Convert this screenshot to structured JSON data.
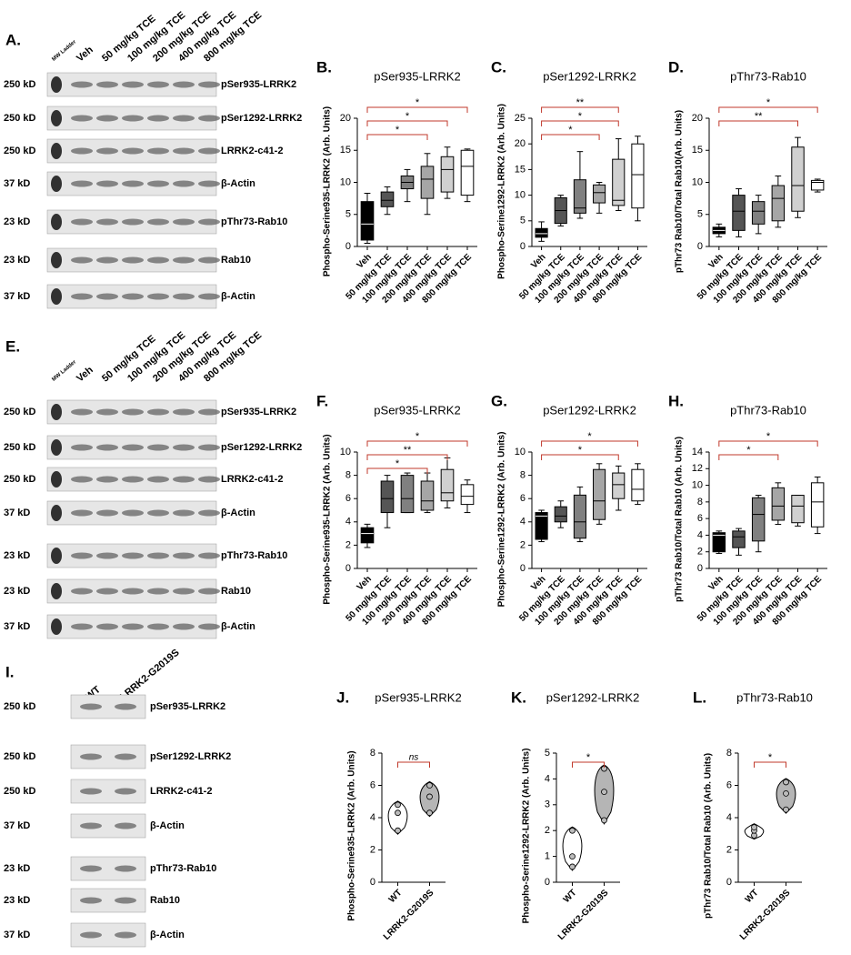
{
  "blots": [
    {
      "panel": "A.",
      "lanes": [
        "MW Ladder",
        "Veh",
        "50 mg/kg TCE",
        "100 mg/kg TCE",
        "200 mg/kg TCE",
        "400 mg/kg TCE",
        "800 mg/kg TCE"
      ],
      "rows": [
        {
          "size": "250 kD",
          "label": "pSer935-LRRK2"
        },
        {
          "size": "250 kD",
          "label": "pSer1292-LRRK2"
        },
        {
          "size": "250 kD",
          "label": "LRRK2-c41-2"
        },
        {
          "size": "37 kD",
          "label": "β-Actin"
        },
        {
          "size": "23 kD",
          "label": "pThr73-Rab10"
        },
        {
          "size": "23 kD",
          "label": "Rab10"
        },
        {
          "size": "37 kD",
          "label": "β-Actin"
        }
      ]
    },
    {
      "panel": "E.",
      "lanes": [
        "MW Ladder",
        "Veh",
        "50 mg/kg TCE",
        "100 mg/kg TCE",
        "200 mg/kg TCE",
        "400 mg/kg TCE",
        "800 mg/kg TCE"
      ],
      "rows": [
        {
          "size": "250 kD",
          "label": "pSer935-LRRK2"
        },
        {
          "size": "250 kD",
          "label": "pSer1292-LRRK2"
        },
        {
          "size": "250 kD",
          "label": "LRRK2-c41-2"
        },
        {
          "size": "37 kD",
          "label": "β-Actin"
        },
        {
          "size": "23 kD",
          "label": "pThr73-Rab10"
        },
        {
          "size": "23 kD",
          "label": "Rab10"
        },
        {
          "size": "37 kD",
          "label": "β-Actin"
        }
      ]
    },
    {
      "panel": "I.",
      "lanes": [
        "WT",
        "LRRK2-G2019S"
      ],
      "rows": [
        {
          "size": "250 kD",
          "label": "pSer935-LRRK2"
        },
        {
          "size": "250 kD",
          "label": "pSer1292-LRRK2"
        },
        {
          "size": "250 kD",
          "label": "LRRK2-c41-2"
        },
        {
          "size": "37 kD",
          "label": "β-Actin"
        },
        {
          "size": "23 kD",
          "label": "pThr73-Rab10"
        },
        {
          "size": "23 kD",
          "label": "Rab10"
        },
        {
          "size": "37 kD",
          "label": "β-Actin"
        }
      ]
    }
  ],
  "chart_data": [
    {
      "type": "box",
      "panel": "B.",
      "title": "pSer935-LRRK2",
      "y_label": "Phospho-Serine935-LRRK2 (Arb. Units)",
      "categories": [
        "Veh",
        "50 mg/kg TCE",
        "100 mg/kg TCE",
        "200 mg/kg TCE",
        "400 mg/kg TCE",
        "800 mg/kg TCE"
      ],
      "colors": [
        "#000000",
        "#555555",
        "#808080",
        "#a6a6a6",
        "#d0d0d0",
        "#ffffff"
      ],
      "boxes": [
        {
          "min": 0.5,
          "q1": 1,
          "median": 3.5,
          "q3": 7,
          "max": 8.3
        },
        {
          "min": 5,
          "q1": 6.2,
          "median": 7.2,
          "q3": 8.5,
          "max": 9.3
        },
        {
          "min": 7,
          "q1": 9,
          "median": 10,
          "q3": 11,
          "max": 12
        },
        {
          "min": 5,
          "q1": 7.5,
          "median": 10.5,
          "q3": 12.5,
          "max": 14.5
        },
        {
          "min": 7.5,
          "q1": 8.5,
          "median": 12,
          "q3": 14,
          "max": 15.5
        },
        {
          "min": 7,
          "q1": 8,
          "median": 12.5,
          "q3": 15,
          "max": 15.2
        }
      ],
      "ylim": [
        0,
        20
      ],
      "yticks": [
        0,
        5,
        10,
        15,
        20
      ],
      "significance": [
        {
          "from": "Veh",
          "to": "800 mg/kg TCE",
          "label": "*"
        },
        {
          "from": "Veh",
          "to": "400 mg/kg TCE",
          "label": "*"
        },
        {
          "from": "Veh",
          "to": "200 mg/kg TCE",
          "label": "*"
        }
      ]
    },
    {
      "type": "box",
      "panel": "C.",
      "title": "pSer1292-LRRK2",
      "y_label": "Phospho-Serine1292-LRRK2 (Arb. Units)",
      "categories": [
        "Veh",
        "50 mg/kg TCE",
        "100 mg/kg TCE",
        "200 mg/kg TCE",
        "400 mg/kg TCE",
        "800 mg/kg TCE"
      ],
      "colors": [
        "#000000",
        "#555555",
        "#808080",
        "#a6a6a6",
        "#d0d0d0",
        "#ffffff"
      ],
      "boxes": [
        {
          "min": 1,
          "q1": 1.8,
          "median": 2.5,
          "q3": 3.5,
          "max": 4.8
        },
        {
          "min": 4,
          "q1": 4.5,
          "median": 7,
          "q3": 9.5,
          "max": 10
        },
        {
          "min": 5.5,
          "q1": 6.5,
          "median": 7.5,
          "q3": 13,
          "max": 18.5
        },
        {
          "min": 6.5,
          "q1": 8.5,
          "median": 10.5,
          "q3": 12,
          "max": 12.5
        },
        {
          "min": 7,
          "q1": 8,
          "median": 9,
          "q3": 17,
          "max": 21
        },
        {
          "min": 5,
          "q1": 7.5,
          "median": 14,
          "q3": 20,
          "max": 21.5
        }
      ],
      "ylim": [
        0,
        25
      ],
      "yticks": [
        0,
        5,
        10,
        15,
        20,
        25
      ],
      "significance": [
        {
          "from": "Veh",
          "to": "400 mg/kg TCE",
          "label": "**"
        },
        {
          "from": "Veh",
          "to": "400 mg/kg TCE",
          "label": "*"
        },
        {
          "from": "Veh",
          "to": "200 mg/kg TCE",
          "label": "*"
        }
      ]
    },
    {
      "type": "box",
      "panel": "D.",
      "title": "pThr73-Rab10",
      "y_label": "pThr73 Rab10/Total Rab10(Arb. Units)",
      "categories": [
        "Veh",
        "50 mg/kg TCE",
        "100 mg/kg TCE",
        "200 mg/kg TCE",
        "400 mg/kg TCE",
        "800 mg/kg TCE"
      ],
      "colors": [
        "#000000",
        "#555555",
        "#808080",
        "#a6a6a6",
        "#d0d0d0",
        "#ffffff"
      ],
      "boxes": [
        {
          "min": 1.5,
          "q1": 2,
          "median": 2.5,
          "q3": 3,
          "max": 3.5
        },
        {
          "min": 1.5,
          "q1": 2.5,
          "median": 5.5,
          "q3": 8,
          "max": 9
        },
        {
          "min": 2,
          "q1": 3.5,
          "median": 5.5,
          "q3": 7,
          "max": 8
        },
        {
          "min": 3,
          "q1": 4,
          "median": 7.5,
          "q3": 9.5,
          "max": 11
        },
        {
          "min": 4.5,
          "q1": 5.5,
          "median": 9.5,
          "q3": 15.5,
          "max": 17
        },
        {
          "min": 8.5,
          "q1": 8.8,
          "median": 10,
          "q3": 10.3,
          "max": 10.5
        }
      ],
      "ylim": [
        0,
        20
      ],
      "yticks": [
        0,
        5,
        10,
        15,
        20
      ],
      "significance": [
        {
          "from": "Veh",
          "to": "800 mg/kg TCE",
          "label": "*"
        },
        {
          "from": "Veh",
          "to": "400 mg/kg TCE",
          "label": "**"
        }
      ]
    },
    {
      "type": "box",
      "panel": "F.",
      "title": "pSer935-LRRK2",
      "y_label": "Phospho-Serine935-LRRK2 (Arb. Units)",
      "categories": [
        "Veh",
        "50 mg/kg TCE",
        "100 mg/kg TCE",
        "200 mg/kg TCE",
        "400 mg/kg TCE",
        "800 mg/kg TCE"
      ],
      "colors": [
        "#000000",
        "#555555",
        "#808080",
        "#a6a6a6",
        "#d0d0d0",
        "#ffffff"
      ],
      "boxes": [
        {
          "min": 1.8,
          "q1": 2.2,
          "median": 3,
          "q3": 3.5,
          "max": 3.8
        },
        {
          "min": 3.5,
          "q1": 4.8,
          "median": 6,
          "q3": 7.5,
          "max": 8
        },
        {
          "min": 4.8,
          "q1": 4.8,
          "median": 6,
          "q3": 8,
          "max": 8.2
        },
        {
          "min": 4.8,
          "q1": 5,
          "median": 5.8,
          "q3": 7.5,
          "max": 8.2
        },
        {
          "min": 5.2,
          "q1": 5.8,
          "median": 6.5,
          "q3": 8.5,
          "max": 9.5
        },
        {
          "min": 4.8,
          "q1": 5.5,
          "median": 6.2,
          "q3": 7.2,
          "max": 7.6
        }
      ],
      "ylim": [
        0,
        10
      ],
      "yticks": [
        0,
        2,
        4,
        6,
        8,
        10
      ],
      "significance": [
        {
          "from": "Veh",
          "to": "800 mg/kg TCE",
          "label": "*"
        },
        {
          "from": "Veh",
          "to": "400 mg/kg TCE",
          "label": "**"
        },
        {
          "from": "Veh",
          "to": "200 mg/kg TCE",
          "label": "*"
        }
      ]
    },
    {
      "type": "box",
      "panel": "G.",
      "title": "pSer1292-LRRK2",
      "y_label": "Phospho-Serine1292-LRRK2 (Arb. Units)",
      "categories": [
        "Veh",
        "50 mg/kg TCE",
        "100 mg/kg TCE",
        "200 mg/kg TCE",
        "400 mg/kg TCE",
        "800 mg/kg TCE"
      ],
      "colors": [
        "#000000",
        "#555555",
        "#808080",
        "#a6a6a6",
        "#d0d0d0",
        "#ffffff"
      ],
      "boxes": [
        {
          "min": 2.3,
          "q1": 2.5,
          "median": 4.5,
          "q3": 4.8,
          "max": 5
        },
        {
          "min": 3.5,
          "q1": 4,
          "median": 4.5,
          "q3": 5.3,
          "max": 5.8
        },
        {
          "min": 2.3,
          "q1": 2.6,
          "median": 4,
          "q3": 6.3,
          "max": 7
        },
        {
          "min": 3.8,
          "q1": 4.2,
          "median": 5.8,
          "q3": 8.5,
          "max": 9
        },
        {
          "min": 5,
          "q1": 6,
          "median": 7.2,
          "q3": 8.2,
          "max": 8.8
        },
        {
          "min": 5.5,
          "q1": 5.8,
          "median": 6.8,
          "q3": 8.5,
          "max": 9
        }
      ],
      "ylim": [
        0,
        10
      ],
      "yticks": [
        0,
        2,
        4,
        6,
        8,
        10
      ],
      "significance": [
        {
          "from": "Veh",
          "to": "800 mg/kg TCE",
          "label": "*"
        },
        {
          "from": "Veh",
          "to": "400 mg/kg TCE",
          "label": "*"
        }
      ]
    },
    {
      "type": "box",
      "panel": "H.",
      "title": "pThr73-Rab10",
      "y_label": "pThr73 Rab10/Total Rab10 (Arb. Units)",
      "categories": [
        "Veh",
        "50 mg/kg TCE",
        "100 mg/kg TCE",
        "200 mg/kg TCE",
        "400 mg/kg TCE",
        "800 mg/kg TCE"
      ],
      "colors": [
        "#000000",
        "#555555",
        "#808080",
        "#a6a6a6",
        "#d0d0d0",
        "#ffffff"
      ],
      "boxes": [
        {
          "min": 1.8,
          "q1": 2,
          "median": 4,
          "q3": 4.3,
          "max": 4.5
        },
        {
          "min": 1.6,
          "q1": 2.5,
          "median": 3.8,
          "q3": 4.5,
          "max": 4.8
        },
        {
          "min": 2,
          "q1": 3.3,
          "median": 6.5,
          "q3": 8.5,
          "max": 8.8
        },
        {
          "min": 5.3,
          "q1": 5.8,
          "median": 7.5,
          "q3": 9.7,
          "max": 10.3
        },
        {
          "min": 5.1,
          "q1": 5.5,
          "median": 7.5,
          "q3": 8.8,
          "max": 8.8
        },
        {
          "min": 4.2,
          "q1": 5,
          "median": 8,
          "q3": 10.3,
          "max": 11
        }
      ],
      "ylim": [
        0,
        14
      ],
      "yticks": [
        0,
        2,
        4,
        6,
        8,
        10,
        12,
        14
      ],
      "significance": [
        {
          "from": "Veh",
          "to": "800 mg/kg TCE",
          "label": "*"
        },
        {
          "from": "Veh",
          "to": "200 mg/kg TCE",
          "label": "*"
        }
      ]
    },
    {
      "type": "violin",
      "panel": "J.",
      "title": "pSer935-LRRK2",
      "y_label": "Phospho-Serine935-LRRK2 (Arb. Units)",
      "categories": [
        "WT",
        "LRRK2-G2019S"
      ],
      "colors": [
        "#ffffff",
        "#b5b5b5"
      ],
      "points": [
        [
          3.2,
          4.3,
          4.8
        ],
        [
          4.3,
          5.3,
          6.0
        ]
      ],
      "ylim": [
        0,
        8
      ],
      "yticks": [
        0,
        2,
        4,
        6,
        8
      ],
      "significance": [
        {
          "from": "WT",
          "to": "LRRK2-G2019S",
          "label": "ns"
        }
      ]
    },
    {
      "type": "violin",
      "panel": "K.",
      "title": "pSer1292-LRRK2",
      "y_label": "Phospho-Serine1292-LRRK2 (Arb. Units)",
      "categories": [
        "WT",
        "LRRK2-G2019S"
      ],
      "colors": [
        "#ffffff",
        "#b5b5b5"
      ],
      "points": [
        [
          0.6,
          1.0,
          2.0
        ],
        [
          2.4,
          3.5,
          4.4
        ]
      ],
      "ylim": [
        0,
        5
      ],
      "yticks": [
        0,
        1,
        2,
        3,
        4,
        5
      ],
      "significance": [
        {
          "from": "WT",
          "to": "LRRK2-G2019S",
          "label": "*"
        }
      ]
    },
    {
      "type": "violin",
      "panel": "L.",
      "title": "pThr73-Rab10",
      "y_label": "pThr73 Rab10/Total Rab10 (Arb. Units)",
      "categories": [
        "WT",
        "LRRK2-G2019S"
      ],
      "colors": [
        "#ffffff",
        "#b5b5b5"
      ],
      "points": [
        [
          2.9,
          3.2,
          3.4
        ],
        [
          4.5,
          5.5,
          6.2
        ]
      ],
      "ylim": [
        0,
        8
      ],
      "yticks": [
        0,
        2,
        4,
        6,
        8
      ],
      "significance": [
        {
          "from": "WT",
          "to": "LRRK2-G2019S",
          "label": "*"
        }
      ]
    }
  ]
}
